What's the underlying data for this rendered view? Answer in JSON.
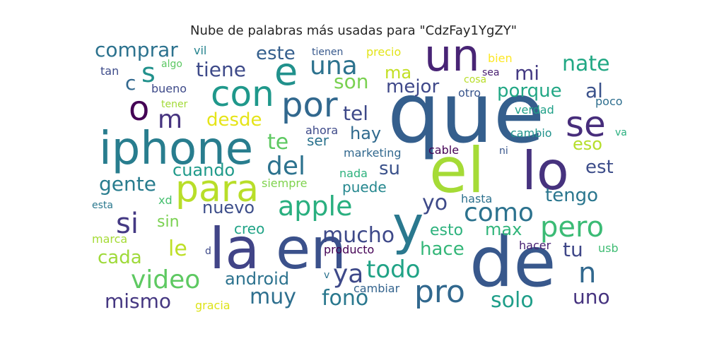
{
  "chart_data": {
    "type": "wordcloud",
    "title": "Nube de palabras más usadas para \"CdzFay1YgZY\"",
    "words": [
      {
        "text": "que",
        "color": "#355f8d"
      },
      {
        "text": "el",
        "color": "#a5db36"
      },
      {
        "text": "de",
        "color": "#38588c"
      },
      {
        "text": "la",
        "color": "#414487"
      },
      {
        "text": "en",
        "color": "#3b518b"
      },
      {
        "text": "lo",
        "color": "#46327e"
      },
      {
        "text": "y",
        "color": "#2a788e"
      },
      {
        "text": "un",
        "color": "#482475"
      },
      {
        "text": "iphone",
        "color": "#287d8e"
      },
      {
        "text": "para",
        "color": "#b8de29"
      },
      {
        "text": "con",
        "color": "#1f988b"
      },
      {
        "text": "e",
        "color": "#21918c"
      },
      {
        "text": "o",
        "color": "#440154"
      },
      {
        "text": "por",
        "color": "#31688e"
      },
      {
        "text": "se",
        "color": "#472d7b"
      },
      {
        "text": "pro",
        "color": "#31688e"
      },
      {
        "text": "si",
        "color": "#443983"
      },
      {
        "text": "apple",
        "color": "#29af7f"
      },
      {
        "text": "pero",
        "color": "#3bbb75"
      },
      {
        "text": "del",
        "color": "#2c728e"
      },
      {
        "text": "n",
        "color": "#31688e"
      },
      {
        "text": "una",
        "color": "#2c728e"
      },
      {
        "text": "como",
        "color": "#2c728e"
      },
      {
        "text": "video",
        "color": "#5ec962"
      },
      {
        "text": "s",
        "color": "#21918c"
      },
      {
        "text": "m",
        "color": "#46337f"
      },
      {
        "text": "ya",
        "color": "#3e4989"
      },
      {
        "text": "todo",
        "color": "#20a386"
      },
      {
        "text": "yo",
        "color": "#3e4a89"
      },
      {
        "text": "solo",
        "color": "#1f9e89"
      },
      {
        "text": "fono",
        "color": "#2a788e"
      },
      {
        "text": "mucho",
        "color": "#3e4989"
      },
      {
        "text": "muy",
        "color": "#2e6f8e"
      },
      {
        "text": "te",
        "color": "#5ec962"
      },
      {
        "text": "mismo",
        "color": "#453781"
      },
      {
        "text": "tu",
        "color": "#3f4788"
      },
      {
        "text": "uno",
        "color": "#46337f"
      },
      {
        "text": "nate",
        "color": "#22a884"
      },
      {
        "text": "mi",
        "color": "#443a83"
      },
      {
        "text": "al",
        "color": "#3b528b"
      },
      {
        "text": "c",
        "color": "#31688e"
      },
      {
        "text": "comprar",
        "color": "#2c728e"
      },
      {
        "text": "tiene",
        "color": "#3e4a89"
      },
      {
        "text": "este",
        "color": "#355f8d"
      },
      {
        "text": "gente",
        "color": "#287c8e"
      },
      {
        "text": "le",
        "color": "#bddf26"
      },
      {
        "text": "porque",
        "color": "#22a785"
      },
      {
        "text": "mejor",
        "color": "#3f4889"
      },
      {
        "text": "son",
        "color": "#7ad151"
      },
      {
        "text": "hace",
        "color": "#35b779"
      },
      {
        "text": "cada",
        "color": "#9fda3a"
      },
      {
        "text": "tengo",
        "color": "#2a768e"
      },
      {
        "text": "nuevo",
        "color": "#3d4e8a"
      },
      {
        "text": "desde",
        "color": "#e5e419"
      },
      {
        "text": "cuando",
        "color": "#1f9a8a"
      },
      {
        "text": "su",
        "color": "#3b528b"
      },
      {
        "text": "android",
        "color": "#2c728e"
      },
      {
        "text": "max",
        "color": "#31b57b"
      },
      {
        "text": "esto",
        "color": "#2db27d"
      },
      {
        "text": "tel",
        "color": "#3e4989"
      },
      {
        "text": "hay",
        "color": "#306a8e"
      },
      {
        "text": "eso",
        "color": "#b5de2b"
      },
      {
        "text": "est",
        "color": "#3d4d8a"
      },
      {
        "text": "ma",
        "color": "#c2df23"
      },
      {
        "text": "sin",
        "color": "#7ad151"
      },
      {
        "text": "creo",
        "color": "#20a386"
      },
      {
        "text": "ser",
        "color": "#2c738e"
      },
      {
        "text": "puede",
        "color": "#24878e"
      },
      {
        "text": "tienen",
        "color": "#38598c"
      },
      {
        "text": "precio",
        "color": "#e2e418"
      },
      {
        "text": "vil",
        "color": "#25838e"
      },
      {
        "text": "algo",
        "color": "#5cc863"
      },
      {
        "text": "tan",
        "color": "#3e4c8a"
      },
      {
        "text": "bueno",
        "color": "#3e4a89"
      },
      {
        "text": "tener",
        "color": "#a2da37"
      },
      {
        "text": "bien",
        "color": "#fde725"
      },
      {
        "text": "sea",
        "color": "#481f70"
      },
      {
        "text": "cosa",
        "color": "#b8de29"
      },
      {
        "text": "otro",
        "color": "#39558c"
      },
      {
        "text": "poco",
        "color": "#2e6e8e"
      },
      {
        "text": "verdad",
        "color": "#1fa088"
      },
      {
        "text": "cambio",
        "color": "#20928c"
      },
      {
        "text": "va",
        "color": "#29af7f"
      },
      {
        "text": "ahora",
        "color": "#3e4a89"
      },
      {
        "text": "marketing",
        "color": "#31688e"
      },
      {
        "text": "cable",
        "color": "#440154"
      },
      {
        "text": "ni",
        "color": "#39568c"
      },
      {
        "text": "nada",
        "color": "#2db27d"
      },
      {
        "text": "siempre",
        "color": "#7fd34e"
      },
      {
        "text": "hasta",
        "color": "#2c718e"
      },
      {
        "text": "esta",
        "color": "#2a788e"
      },
      {
        "text": "xd",
        "color": "#46c06f"
      },
      {
        "text": "marca",
        "color": "#a5db36"
      },
      {
        "text": "d",
        "color": "#3e4a89"
      },
      {
        "text": "producto",
        "color": "#440154"
      },
      {
        "text": "hacer",
        "color": "#482173"
      },
      {
        "text": "usb",
        "color": "#3fbc73"
      },
      {
        "text": "v",
        "color": "#2c728e"
      },
      {
        "text": "cambiar",
        "color": "#33638d"
      },
      {
        "text": "gracia",
        "color": "#dde318"
      }
    ]
  }
}
